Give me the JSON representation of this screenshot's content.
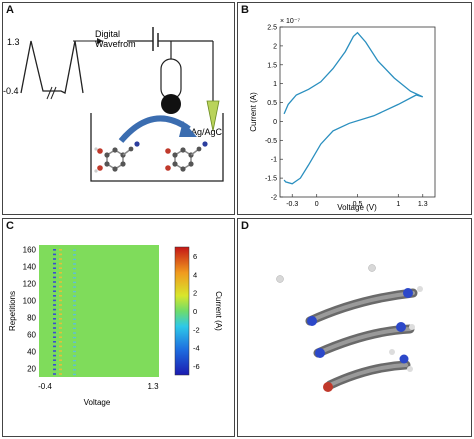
{
  "panels": {
    "a": {
      "letter": "A",
      "waveform_high": "1.3",
      "waveform_low": "-0.4",
      "waveform_label_line1": "Digital",
      "waveform_label_line2": "Wavefrom",
      "electrode_label": "Ag/AgCl"
    },
    "b": {
      "letter": "B",
      "exponent": "× 10⁻⁷"
    },
    "c": {
      "letter": "C"
    },
    "d": {
      "letter": "D"
    }
  },
  "chart_data": [
    {
      "type": "line",
      "panel": "B",
      "xlabel": "Voltage (V)",
      "ylabel": "Current (A)",
      "xlim": [
        -0.45,
        1.45
      ],
      "ylim": [
        -2.0,
        2.5
      ],
      "x_ticks": [
        "-0.3",
        "0",
        "0.5",
        "1",
        "1.3"
      ],
      "x_tick_values": [
        -0.3,
        0,
        0.5,
        1,
        1.3
      ],
      "y_ticks": [
        "2.5",
        "2",
        "1.5",
        "1",
        "0.5",
        "0",
        "-0.5",
        "-1",
        "-1.5",
        "-2"
      ],
      "y_tick_values": [
        2.5,
        2,
        1.5,
        1,
        0.5,
        0,
        -0.5,
        -1,
        -1.5,
        -2
      ],
      "series": [
        {
          "color": "#2a8fbf",
          "x": [
            -0.4,
            -0.35,
            -0.25,
            -0.1,
            0.05,
            0.2,
            0.35,
            0.45,
            0.5,
            0.6,
            0.75,
            0.95,
            1.15,
            1.3,
            1.22,
            1.0,
            0.7,
            0.4,
            0.2,
            0.05,
            -0.1,
            -0.2,
            -0.3,
            -0.38,
            -0.4
          ],
          "y": [
            0.2,
            0.45,
            0.7,
            0.85,
            1.05,
            1.4,
            1.85,
            2.25,
            2.35,
            2.1,
            1.6,
            1.15,
            0.8,
            0.65,
            0.7,
            0.45,
            0.15,
            -0.05,
            -0.25,
            -0.6,
            -1.15,
            -1.5,
            -1.65,
            -1.6,
            -1.55
          ]
        }
      ]
    },
    {
      "type": "heatmap",
      "panel": "C",
      "xlabel": "Voltage",
      "ylabel": "Repetitions",
      "colorbar_label": "Current (A)",
      "x_ticks": [
        "-0.4",
        "1.3"
      ],
      "y_ticks": [
        "160",
        "140",
        "120",
        "100",
        "80",
        "60",
        "40",
        "20"
      ],
      "y_tick_values": [
        160,
        140,
        120,
        100,
        80,
        60,
        40,
        20
      ],
      "ylim": [
        10,
        165
      ],
      "colorbar_ticks": [
        "6",
        "4",
        "2",
        "0",
        "-2",
        "-4",
        "-6"
      ],
      "colorbar_tick_values": [
        6,
        4,
        2,
        0,
        -2,
        -4,
        -6
      ],
      "clim": [
        -7,
        7
      ]
    }
  ]
}
